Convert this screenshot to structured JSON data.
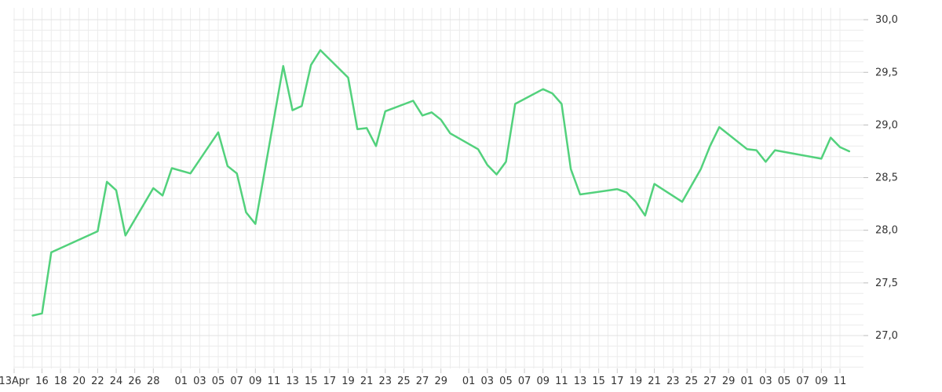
{
  "chart_data": {
    "type": "line",
    "title": "",
    "xlabel": "",
    "ylabel": "",
    "ylim": [
      26.7,
      30.1
    ],
    "y_ticks": [
      "27,0",
      "27,5",
      "28,0",
      "28,5",
      "29,0",
      "29,5",
      "30,0"
    ],
    "y_tick_values": [
      27.0,
      27.5,
      28.0,
      28.5,
      29.0,
      29.5,
      30.0
    ],
    "x_tick_labels": [
      "13Apr",
      "16",
      "18",
      "20",
      "22",
      "24",
      "26",
      "28",
      "01",
      "03",
      "05",
      "07",
      "09",
      "11",
      "13",
      "15",
      "17",
      "19",
      "21",
      "23",
      "25",
      "27",
      "29",
      "01",
      "03",
      "05",
      "07",
      "09",
      "11",
      "13",
      "15",
      "17",
      "19",
      "21",
      "23",
      "25",
      "27",
      "29",
      "01",
      "03",
      "05",
      "07",
      "09",
      "11"
    ],
    "grid": true,
    "line_color": "#52d17c",
    "series": [
      {
        "values": [
          [
            "2024-04-15",
            27.19
          ],
          [
            "2024-04-16",
            27.21
          ],
          [
            "2024-04-17",
            27.79
          ],
          [
            "2024-04-22",
            27.99
          ],
          [
            "2024-04-23",
            28.46
          ],
          [
            "2024-04-24",
            28.38
          ],
          [
            "2024-04-25",
            27.95
          ],
          [
            "2024-04-28",
            28.4
          ],
          [
            "2024-04-29",
            28.33
          ],
          [
            "2024-04-30",
            28.59
          ],
          [
            "2024-05-02",
            28.54
          ],
          [
            "2024-05-05",
            28.93
          ],
          [
            "2024-05-06",
            28.61
          ],
          [
            "2024-05-07",
            28.54
          ],
          [
            "2024-05-08",
            28.17
          ],
          [
            "2024-05-09",
            28.06
          ],
          [
            "2024-05-12",
            29.56
          ],
          [
            "2024-05-13",
            29.14
          ],
          [
            "2024-05-14",
            29.18
          ],
          [
            "2024-05-15",
            29.57
          ],
          [
            "2024-05-16",
            29.71
          ],
          [
            "2024-05-19",
            29.45
          ],
          [
            "2024-05-20",
            28.96
          ],
          [
            "2024-05-21",
            28.97
          ],
          [
            "2024-05-22",
            28.8
          ],
          [
            "2024-05-23",
            29.13
          ],
          [
            "2024-05-26",
            29.23
          ],
          [
            "2024-05-27",
            29.09
          ],
          [
            "2024-05-28",
            29.12
          ],
          [
            "2024-05-29",
            29.05
          ],
          [
            "2024-05-30",
            28.92
          ],
          [
            "2024-06-02",
            28.77
          ],
          [
            "2024-06-03",
            28.62
          ],
          [
            "2024-06-04",
            28.53
          ],
          [
            "2024-06-05",
            28.65
          ],
          [
            "2024-06-06",
            29.2
          ],
          [
            "2024-06-09",
            29.34
          ],
          [
            "2024-06-10",
            29.3
          ],
          [
            "2024-06-11",
            29.2
          ],
          [
            "2024-06-12",
            28.58
          ],
          [
            "2024-06-13",
            28.34
          ],
          [
            "2024-06-17",
            28.39
          ],
          [
            "2024-06-18",
            28.36
          ],
          [
            "2024-06-19",
            28.27
          ],
          [
            "2024-06-20",
            28.14
          ],
          [
            "2024-06-21",
            28.44
          ],
          [
            "2024-06-24",
            28.27
          ],
          [
            "2024-06-26",
            28.58
          ],
          [
            "2024-06-27",
            28.8
          ],
          [
            "2024-06-28",
            28.98
          ],
          [
            "2024-07-01",
            28.77
          ],
          [
            "2024-07-02",
            28.76
          ],
          [
            "2024-07-03",
            28.65
          ],
          [
            "2024-07-04",
            28.76
          ],
          [
            "2024-07-09",
            28.68
          ],
          [
            "2024-07-10",
            28.88
          ],
          [
            "2024-07-11",
            28.79
          ],
          [
            "2024-07-12",
            28.75
          ]
        ]
      }
    ]
  }
}
